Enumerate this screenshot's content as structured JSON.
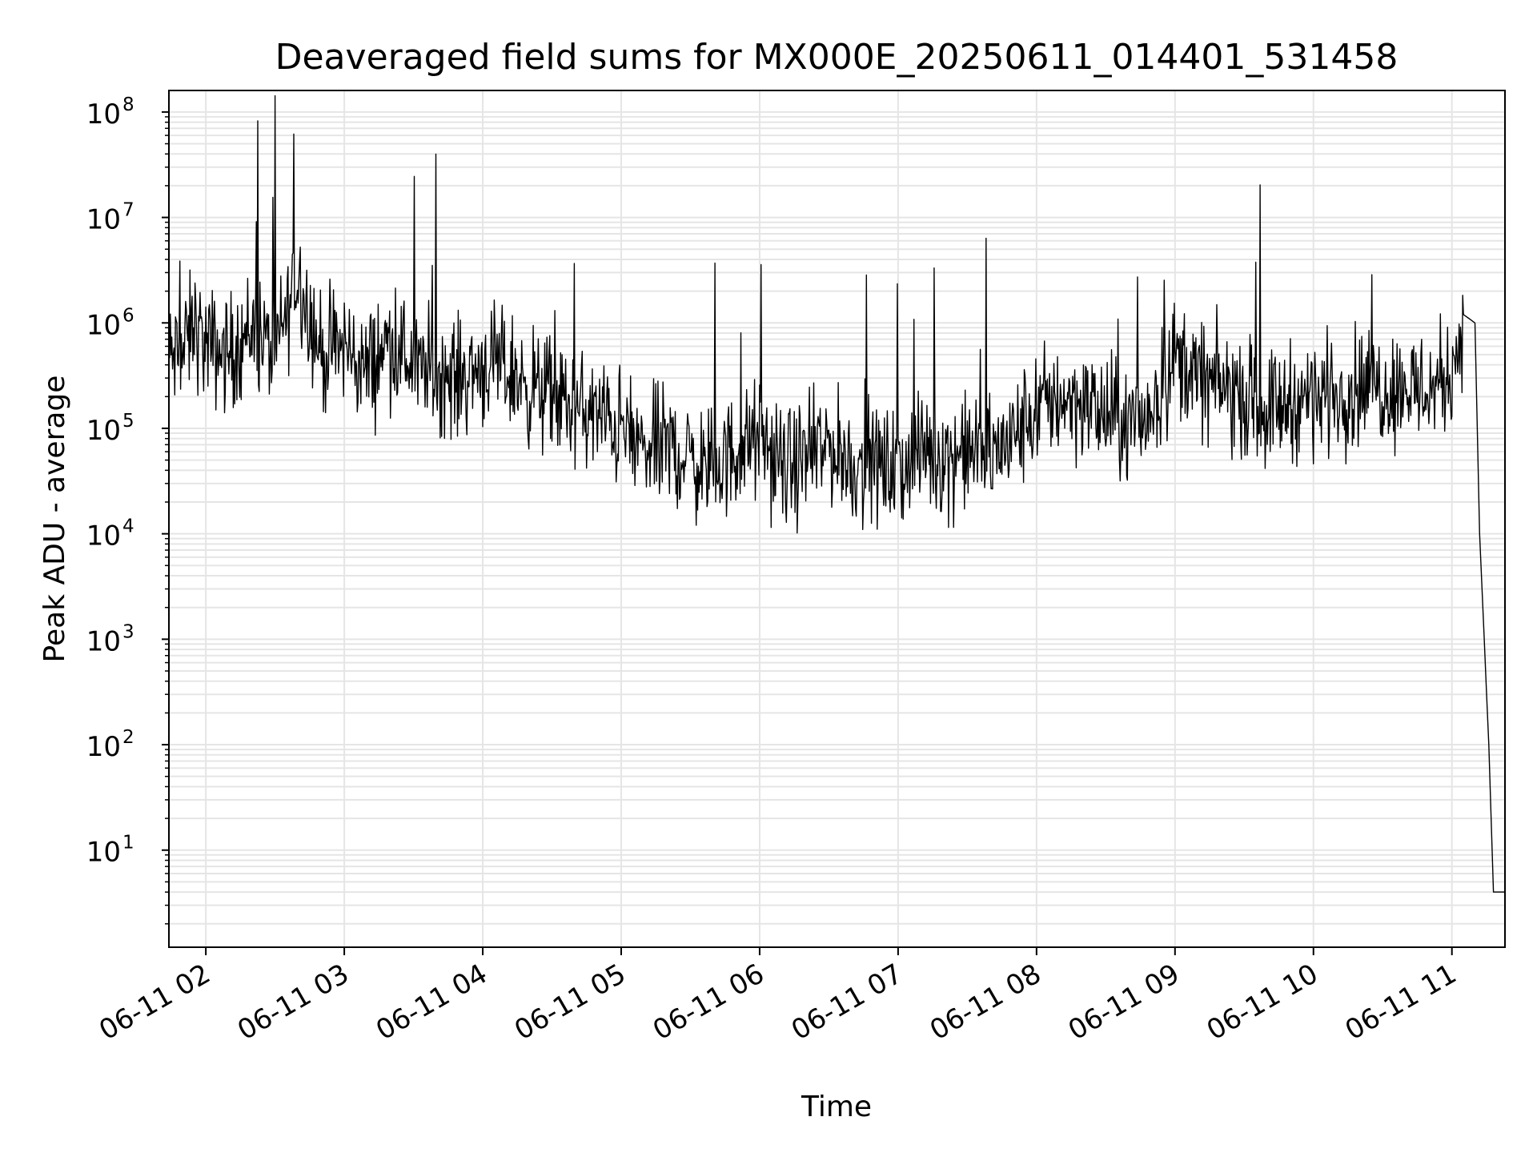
{
  "chart_data": {
    "type": "line",
    "title": "Deaveraged field sums for MX000E_20250611_014401_531458",
    "xlabel": "Time",
    "ylabel": "Peak ADU - average",
    "yscale": "log",
    "xlim": [
      "2025-06-11 01:44",
      "2025-06-11 11:23"
    ],
    "ylim": [
      1.2,
      160000000
    ],
    "grid": true,
    "grid_minor": true,
    "line_color": "#000000",
    "grid_color": "#e5e5e5",
    "x_ticks": [
      {
        "t": "2025-06-11 02:00",
        "label": "06-11 02"
      },
      {
        "t": "2025-06-11 03:00",
        "label": "06-11 03"
      },
      {
        "t": "2025-06-11 04:00",
        "label": "06-11 04"
      },
      {
        "t": "2025-06-11 05:00",
        "label": "06-11 05"
      },
      {
        "t": "2025-06-11 06:00",
        "label": "06-11 06"
      },
      {
        "t": "2025-06-11 07:00",
        "label": "06-11 07"
      },
      {
        "t": "2025-06-11 08:00",
        "label": "06-11 08"
      },
      {
        "t": "2025-06-11 09:00",
        "label": "06-11 09"
      },
      {
        "t": "2025-06-11 10:00",
        "label": "06-11 10"
      },
      {
        "t": "2025-06-11 11:00",
        "label": "06-11 11"
      }
    ],
    "y_ticks": [
      {
        "value": 10,
        "base": "10",
        "exp": "1"
      },
      {
        "value": 100,
        "base": "10",
        "exp": "2"
      },
      {
        "value": 1000,
        "base": "10",
        "exp": "3"
      },
      {
        "value": 10000,
        "base": "10",
        "exp": "4"
      },
      {
        "value": 100000,
        "base": "10",
        "exp": "5"
      },
      {
        "value": 1000000,
        "base": "10",
        "exp": "6"
      },
      {
        "value": 10000000,
        "base": "10",
        "exp": "7"
      },
      {
        "value": 100000000,
        "base": "10",
        "exp": "8"
      }
    ],
    "series": [
      {
        "x": [
          "2025-06-11 01:44",
          "2025-06-11 01:50",
          "2025-06-11 01:55",
          "2025-06-11 02:00",
          "2025-06-11 02:10",
          "2025-06-11 02:20",
          "2025-06-11 02:30",
          "2025-06-11 02:40",
          "2025-06-11 02:50",
          "2025-06-11 03:00",
          "2025-06-11 03:10",
          "2025-06-11 03:20",
          "2025-06-11 03:30",
          "2025-06-11 03:40",
          "2025-06-11 03:50",
          "2025-06-11 04:00",
          "2025-06-11 04:10",
          "2025-06-11 04:20",
          "2025-06-11 04:30",
          "2025-06-11 04:40",
          "2025-06-11 04:50",
          "2025-06-11 05:00",
          "2025-06-11 05:10",
          "2025-06-11 05:20",
          "2025-06-11 05:30",
          "2025-06-11 05:40",
          "2025-06-11 05:50",
          "2025-06-11 06:00",
          "2025-06-11 06:10",
          "2025-06-11 06:20",
          "2025-06-11 06:30",
          "2025-06-11 06:40",
          "2025-06-11 06:50",
          "2025-06-11 07:00",
          "2025-06-11 07:10",
          "2025-06-11 07:20",
          "2025-06-11 07:30",
          "2025-06-11 07:40",
          "2025-06-11 07:50",
          "2025-06-11 08:00",
          "2025-06-11 08:10",
          "2025-06-11 08:20",
          "2025-06-11 08:30",
          "2025-06-11 08:40",
          "2025-06-11 08:50",
          "2025-06-11 09:00",
          "2025-06-11 09:10",
          "2025-06-11 09:20",
          "2025-06-11 09:30",
          "2025-06-11 09:40",
          "2025-06-11 09:50",
          "2025-06-11 10:00",
          "2025-06-11 10:10",
          "2025-06-11 10:20",
          "2025-06-11 10:30",
          "2025-06-11 10:40",
          "2025-06-11 10:50",
          "2025-06-11 11:00",
          "2025-06-11 11:05",
          "2025-06-11 11:10",
          "2025-06-11 11:12",
          "2025-06-11 11:14",
          "2025-06-11 11:16",
          "2025-06-11 11:18",
          "2025-06-11 11:20",
          "2025-06-11 11:23"
        ],
        "y": [
          450000,
          500000,
          1000000,
          600000,
          500000,
          900000,
          500000,
          3000000,
          500000,
          600000,
          350000,
          700000,
          400000,
          330000,
          300000,
          400000,
          350000,
          250000,
          200000,
          150000,
          130000,
          100000,
          60000,
          70000,
          50000,
          40000,
          60000,
          80000,
          40000,
          50000,
          70000,
          45000,
          45000,
          40000,
          60000,
          55000,
          60000,
          55000,
          80000,
          150000,
          200000,
          180000,
          130000,
          100000,
          150000,
          500000,
          300000,
          250000,
          200000,
          150000,
          180000,
          200000,
          220000,
          250000,
          250000,
          250000,
          230000,
          350000,
          1200000,
          1000000,
          10000,
          1000,
          100,
          4,
          4,
          4
        ]
      }
    ]
  }
}
